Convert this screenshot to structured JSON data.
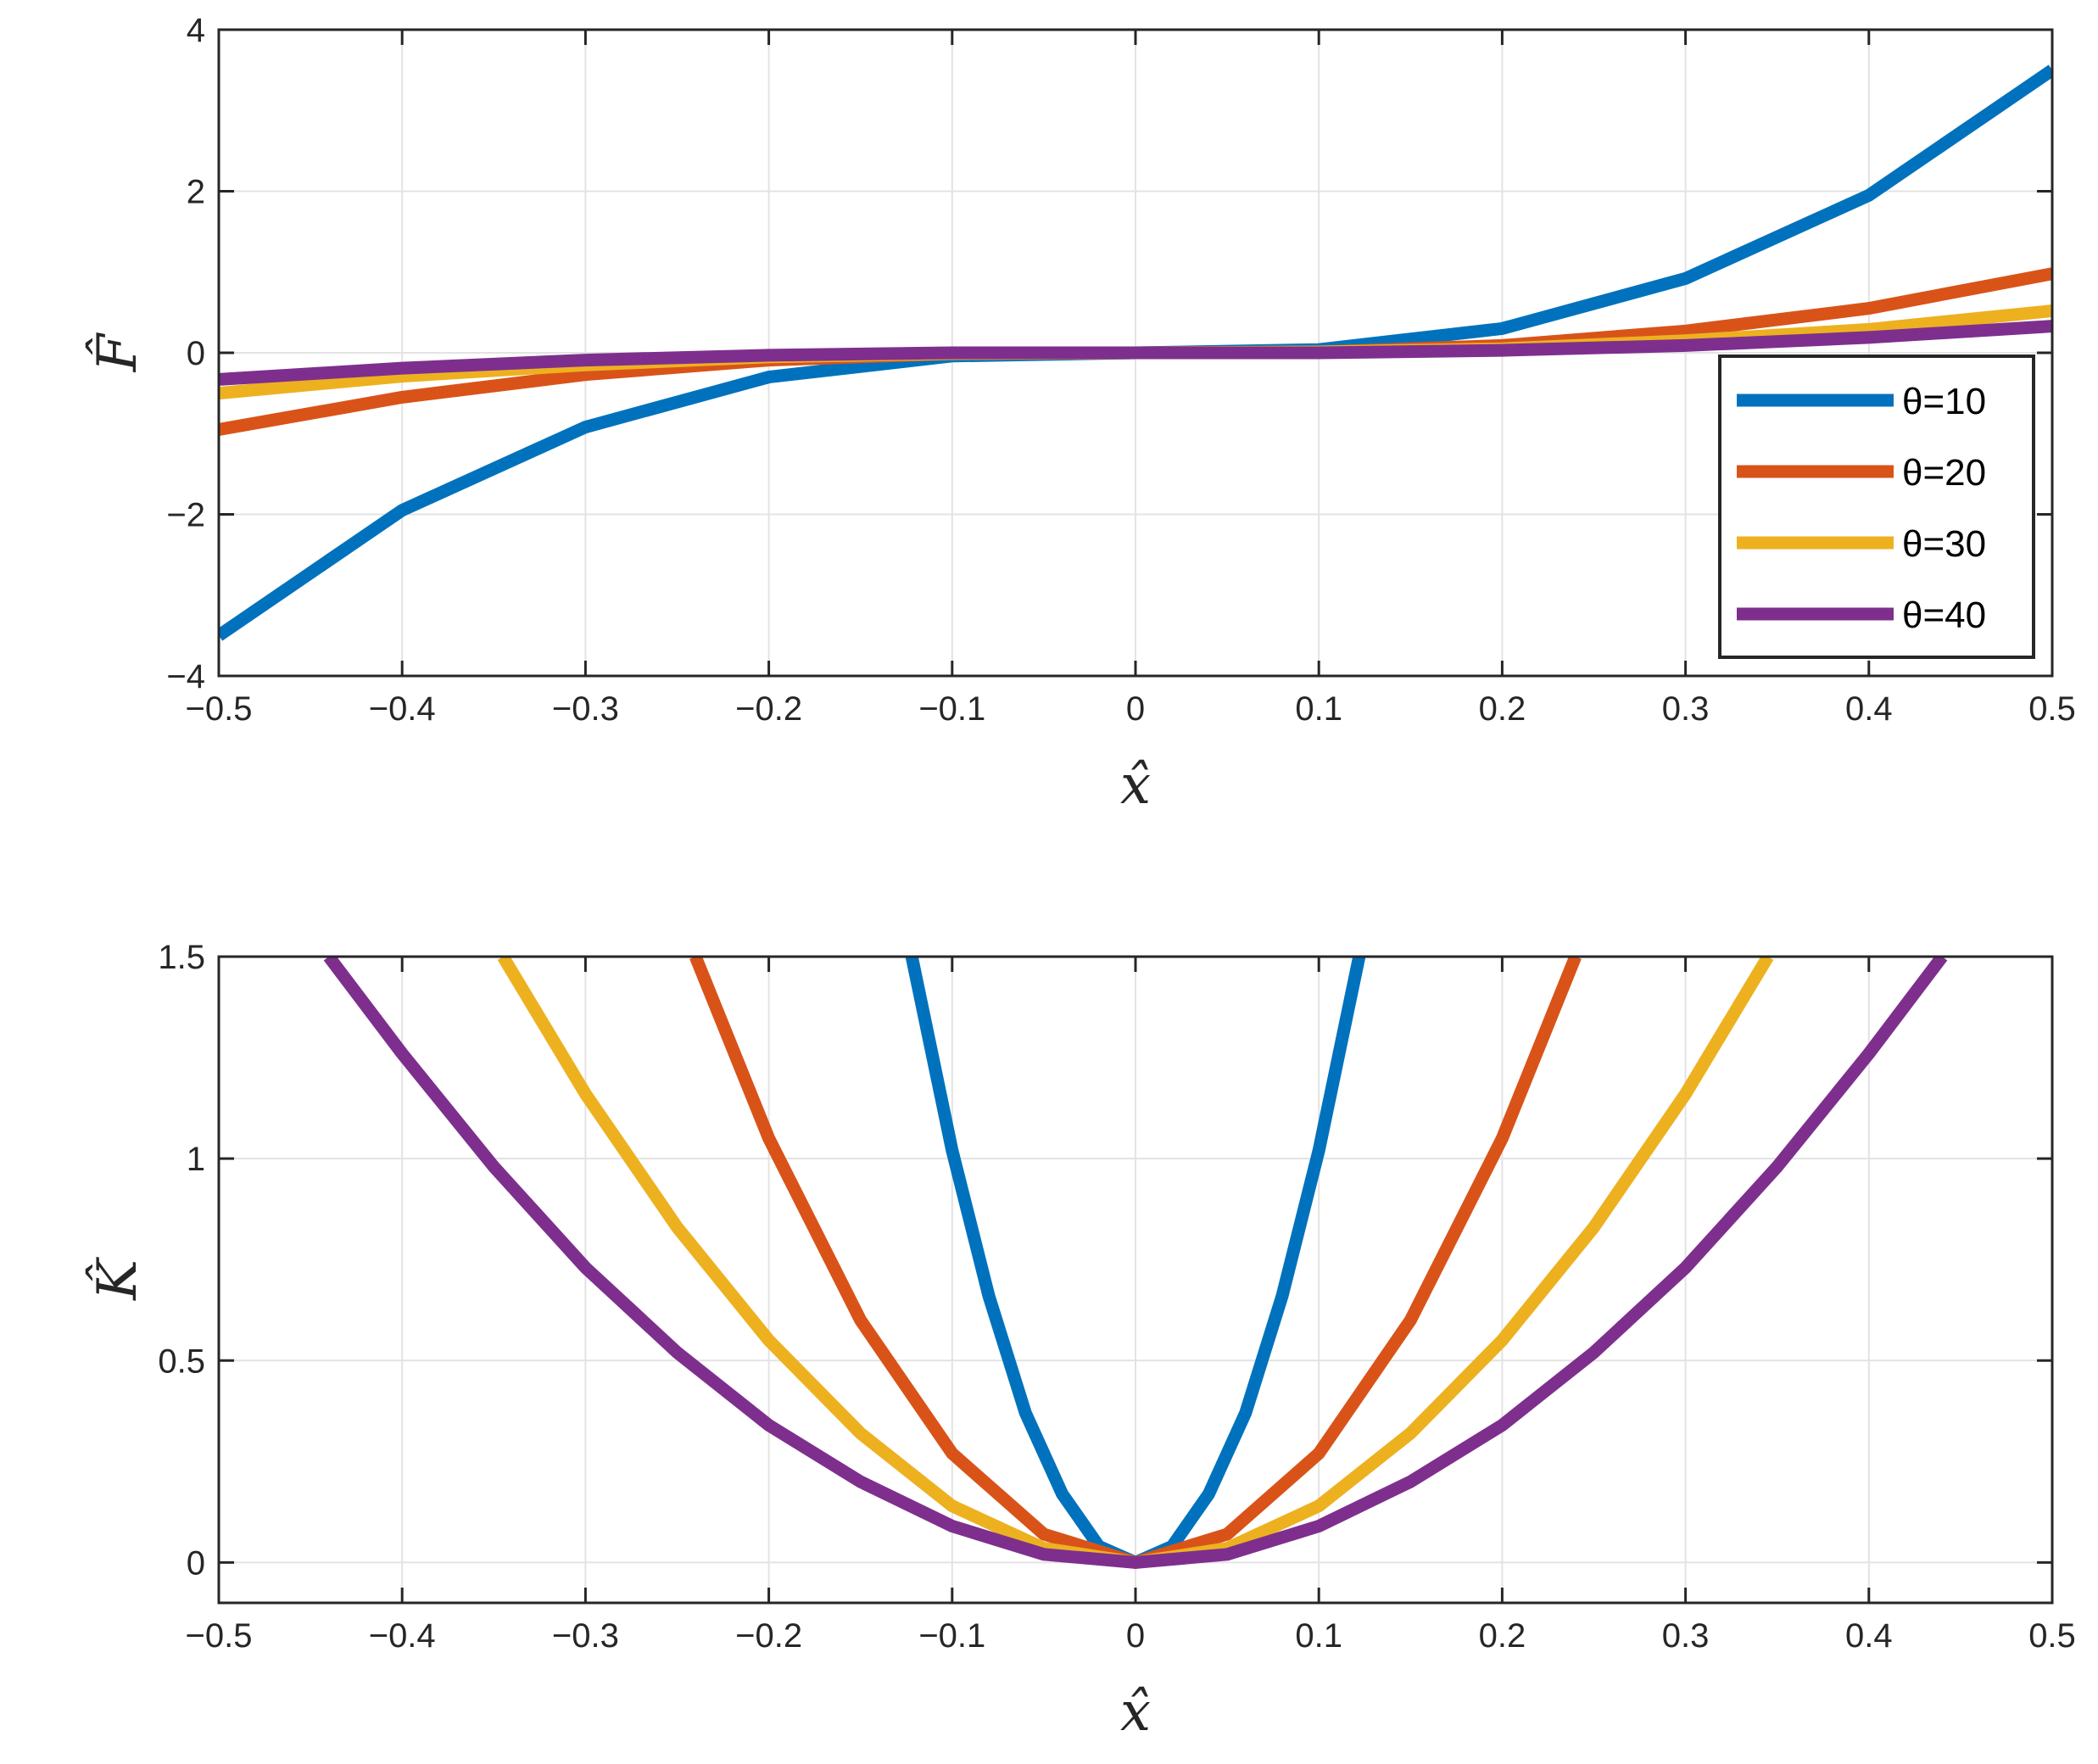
{
  "figure": {
    "panels": 2
  },
  "legend": {
    "entries": [
      "θ=10",
      "θ=20",
      "θ=30",
      "θ=40"
    ],
    "placement": "bottom-right of top panel"
  },
  "chart_data": [
    {
      "type": "line",
      "xlabel": "x̂",
      "ylabel": "F̂",
      "xlim": [
        -0.5,
        0.5
      ],
      "ylim": [
        -4,
        4
      ],
      "xticks": [
        -0.5,
        -0.4,
        -0.3,
        -0.2,
        -0.1,
        0,
        0.1,
        0.2,
        0.3,
        0.4,
        0.5
      ],
      "xtick_labels": [
        "−0.5",
        "−0.4",
        "−0.3",
        "−0.2",
        "−0.1",
        "0",
        "0.1",
        "0.2",
        "0.3",
        "0.4",
        "0.5"
      ],
      "yticks": [
        -4,
        -2,
        0,
        2,
        4
      ],
      "ytick_labels": [
        "−4",
        "−2",
        "0",
        "2",
        "4"
      ],
      "grid": true,
      "series": [
        {
          "name": "θ=10",
          "color": "#0072BD",
          "x": [
            -0.5,
            -0.4,
            -0.3,
            -0.2,
            -0.1,
            0,
            0.1,
            0.2,
            0.3,
            0.4,
            0.5
          ],
          "y": [
            -3.5,
            -1.95,
            -0.92,
            -0.3,
            -0.04,
            0,
            0.04,
            0.3,
            0.92,
            1.95,
            3.5
          ]
        },
        {
          "name": "θ=20",
          "color": "#D95319",
          "x": [
            -0.5,
            -0.4,
            -0.3,
            -0.2,
            -0.1,
            0,
            0.1,
            0.2,
            0.3,
            0.4,
            0.5
          ],
          "y": [
            -0.95,
            -0.55,
            -0.27,
            -0.09,
            -0.01,
            0,
            0.01,
            0.09,
            0.27,
            0.55,
            0.98
          ]
        },
        {
          "name": "θ=30",
          "color": "#EDB120",
          "x": [
            -0.5,
            -0.4,
            -0.3,
            -0.2,
            -0.1,
            0,
            0.1,
            0.2,
            0.3,
            0.4,
            0.5
          ],
          "y": [
            -0.5,
            -0.29,
            -0.15,
            -0.05,
            -0.01,
            0,
            0.01,
            0.05,
            0.15,
            0.29,
            0.52
          ]
        },
        {
          "name": "θ=40",
          "color": "#7E2F8E",
          "x": [
            -0.5,
            -0.4,
            -0.3,
            -0.2,
            -0.1,
            0,
            0.1,
            0.2,
            0.3,
            0.4,
            0.5
          ],
          "y": [
            -0.33,
            -0.19,
            -0.09,
            -0.03,
            0,
            0,
            0,
            0.03,
            0.09,
            0.19,
            0.33
          ]
        }
      ]
    },
    {
      "type": "line",
      "xlabel": "x̂",
      "ylabel": "K̂",
      "xlim": [
        -0.5,
        0.5
      ],
      "ylim": [
        -0.1,
        1.5
      ],
      "xticks": [
        -0.5,
        -0.4,
        -0.3,
        -0.2,
        -0.1,
        0,
        0.1,
        0.2,
        0.3,
        0.4,
        0.5
      ],
      "xtick_labels": [
        "−0.5",
        "−0.4",
        "−0.3",
        "−0.2",
        "−0.1",
        "0",
        "0.1",
        "0.2",
        "0.3",
        "0.4",
        "0.5"
      ],
      "yticks": [
        0,
        0.5,
        1,
        1.5
      ],
      "ytick_labels": [
        "0",
        "0.5",
        "1",
        "1.5"
      ],
      "grid": true,
      "series": [
        {
          "name": "θ=10",
          "color": "#0072BD",
          "x": [
            -0.122,
            -0.1,
            -0.08,
            -0.06,
            -0.04,
            -0.02,
            0,
            0.02,
            0.04,
            0.06,
            0.08,
            0.1,
            0.122
          ],
          "y": [
            1.5,
            1.02,
            0.66,
            0.37,
            0.17,
            0.04,
            0,
            0.04,
            0.17,
            0.37,
            0.66,
            1.02,
            1.5
          ]
        },
        {
          "name": "θ=20",
          "color": "#D95319",
          "x": [
            -0.24,
            -0.2,
            -0.15,
            -0.1,
            -0.05,
            0,
            0.05,
            0.1,
            0.15,
            0.2,
            0.24
          ],
          "y": [
            1.5,
            1.05,
            0.6,
            0.27,
            0.07,
            0,
            0.07,
            0.27,
            0.6,
            1.05,
            1.5
          ]
        },
        {
          "name": "θ=30",
          "color": "#EDB120",
          "x": [
            -0.345,
            -0.3,
            -0.25,
            -0.2,
            -0.15,
            -0.1,
            -0.05,
            0,
            0.05,
            0.1,
            0.15,
            0.2,
            0.25,
            0.3,
            0.345
          ],
          "y": [
            1.5,
            1.16,
            0.83,
            0.55,
            0.32,
            0.14,
            0.035,
            0,
            0.035,
            0.14,
            0.32,
            0.55,
            0.83,
            1.16,
            1.5
          ]
        },
        {
          "name": "θ=40",
          "color": "#7E2F8E",
          "x": [
            -0.44,
            -0.4,
            -0.35,
            -0.3,
            -0.25,
            -0.2,
            -0.15,
            -0.1,
            -0.05,
            0,
            0.05,
            0.1,
            0.15,
            0.2,
            0.25,
            0.3,
            0.35,
            0.4,
            0.44
          ],
          "y": [
            1.5,
            1.26,
            0.98,
            0.73,
            0.52,
            0.34,
            0.2,
            0.09,
            0.02,
            0,
            0.02,
            0.09,
            0.2,
            0.34,
            0.52,
            0.73,
            0.98,
            1.26,
            1.5
          ]
        }
      ]
    }
  ]
}
